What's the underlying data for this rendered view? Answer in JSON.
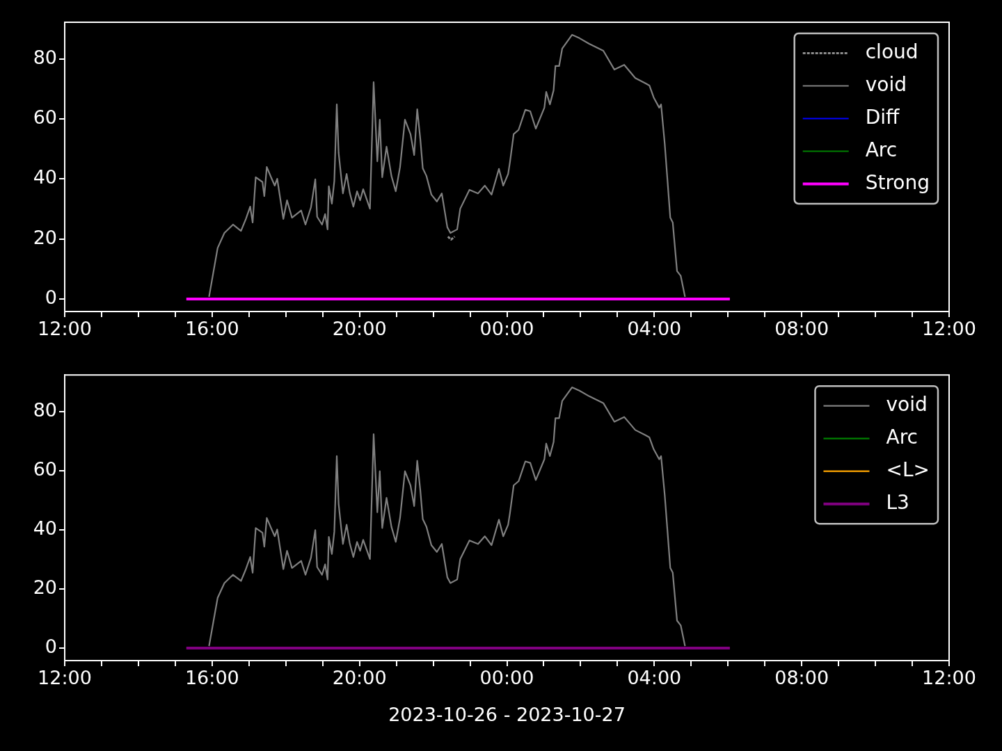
{
  "chart_data": [
    {
      "type": "line",
      "legend": "top right",
      "marker": "none",
      "xlim": [
        "2023-10-26T12:00",
        "2023-10-27T12:00"
      ],
      "xticks": [
        {
          "value": "2023-10-26T12:00",
          "label": "12:00"
        },
        {
          "value": "2023-10-26T13:00",
          "label": null
        },
        {
          "value": "2023-10-26T14:00",
          "label": null
        },
        {
          "value": "2023-10-26T15:00",
          "label": null
        },
        {
          "value": "2023-10-26T16:00",
          "label": "16:00"
        },
        {
          "value": "2023-10-26T17:00",
          "label": null
        },
        {
          "value": "2023-10-26T18:00",
          "label": null
        },
        {
          "value": "2023-10-26T19:00",
          "label": null
        },
        {
          "value": "2023-10-26T20:00",
          "label": "20:00"
        },
        {
          "value": "2023-10-26T21:00",
          "label": null
        },
        {
          "value": "2023-10-26T22:00",
          "label": null
        },
        {
          "value": "2023-10-26T23:00",
          "label": null
        },
        {
          "value": "2023-10-27T00:00",
          "label": "00:00"
        },
        {
          "value": "2023-10-27T01:00",
          "label": null
        },
        {
          "value": "2023-10-27T02:00",
          "label": null
        },
        {
          "value": "2023-10-27T03:00",
          "label": null
        },
        {
          "value": "2023-10-27T04:00",
          "label": "04:00"
        },
        {
          "value": "2023-10-27T05:00",
          "label": null
        },
        {
          "value": "2023-10-27T06:00",
          "label": null
        },
        {
          "value": "2023-10-27T07:00",
          "label": null
        },
        {
          "value": "2023-10-27T08:00",
          "label": "08:00"
        },
        {
          "value": "2023-10-27T09:00",
          "label": null
        },
        {
          "value": "2023-10-27T10:00",
          "label": null
        },
        {
          "value": "2023-10-27T11:00",
          "label": null
        },
        {
          "value": "2023-10-27T12:00",
          "label": "12:00"
        }
      ],
      "ylim": [
        -4.2,
        92.3
      ],
      "yticks": [
        0,
        20,
        40,
        60,
        80
      ],
      "series": [
        {
          "name": "cloud",
          "color": "#8c8c8c",
          "line_style": "dashed",
          "x": [
            "2023-10-26T22:24",
            "2023-10-26T22:27",
            "2023-10-26T22:29",
            "2023-10-26T22:32",
            "2023-10-26T22:35"
          ],
          "values": [
            20.8,
            20.2,
            19.8,
            20.3,
            20.8
          ]
        },
        {
          "name": "void",
          "color": "#808080",
          "x": [
            "2023-10-26T15:55",
            "2023-10-26T16:09",
            "2023-10-26T16:20",
            "2023-10-26T16:34",
            "2023-10-26T16:47",
            "2023-10-26T16:55",
            "2023-10-26T17:02",
            "2023-10-26T17:06",
            "2023-10-26T17:11",
            "2023-10-26T17:22",
            "2023-10-26T17:25",
            "2023-10-26T17:29",
            "2023-10-26T17:37",
            "2023-10-26T17:42",
            "2023-10-26T17:46",
            "2023-10-26T17:56",
            "2023-10-26T18:02",
            "2023-10-26T18:10",
            "2023-10-26T18:25",
            "2023-10-26T18:32",
            "2023-10-26T18:41",
            "2023-10-26T18:48",
            "2023-10-26T18:51",
            "2023-10-26T18:59",
            "2023-10-26T19:04",
            "2023-10-26T19:08",
            "2023-10-26T19:10",
            "2023-10-26T19:15",
            "2023-10-26T19:19",
            "2023-10-26T19:23",
            "2023-10-26T19:26",
            "2023-10-26T19:33",
            "2023-10-26T19:39",
            "2023-10-26T19:44",
            "2023-10-26T19:50",
            "2023-10-26T19:56",
            "2023-10-26T20:01",
            "2023-10-26T20:06",
            "2023-10-26T20:17",
            "2023-10-26T20:23",
            "2023-10-26T20:29",
            "2023-10-26T20:33",
            "2023-10-26T20:37",
            "2023-10-26T20:44",
            "2023-10-26T20:52",
            "2023-10-26T20:59",
            "2023-10-26T21:06",
            "2023-10-26T21:14",
            "2023-10-26T21:23",
            "2023-10-26T21:29",
            "2023-10-26T21:34",
            "2023-10-26T21:39",
            "2023-10-26T21:43",
            "2023-10-26T21:49",
            "2023-10-26T21:57",
            "2023-10-26T22:06",
            "2023-10-26T22:14",
            "2023-10-26T22:23",
            "2023-10-26T22:28",
            "2023-10-26T22:39",
            "2023-10-26T22:44",
            "2023-10-26T22:59",
            "2023-10-26T23:13",
            "2023-10-26T23:24",
            "2023-10-26T23:35",
            "2023-10-26T23:47",
            "2023-10-26T23:54",
            "2023-10-27T00:02",
            "2023-10-27T00:05",
            "2023-10-27T00:11",
            "2023-10-27T00:19",
            "2023-10-27T00:30",
            "2023-10-27T00:38",
            "2023-10-27T00:47",
            "2023-10-27T01:01",
            "2023-10-27T01:04",
            "2023-10-27T01:10",
            "2023-10-27T01:16",
            "2023-10-27T01:19",
            "2023-10-27T01:25",
            "2023-10-27T01:30",
            "2023-10-27T01:46",
            "2023-10-27T01:58",
            "2023-10-27T02:14",
            "2023-10-27T02:37",
            "2023-10-27T02:55",
            "2023-10-27T03:11",
            "2023-10-27T03:29",
            "2023-10-27T03:46",
            "2023-10-27T03:52",
            "2023-10-27T03:59",
            "2023-10-27T04:08",
            "2023-10-27T04:11",
            "2023-10-27T04:17",
            "2023-10-27T04:26",
            "2023-10-27T04:30",
            "2023-10-27T04:37",
            "2023-10-27T04:43",
            "2023-10-27T04:50"
          ],
          "values": [
            0.7,
            17,
            22,
            24.8,
            22.7,
            26.7,
            30.8,
            25.5,
            40.6,
            39,
            34.3,
            44,
            40.1,
            37.8,
            40.1,
            26.7,
            32.9,
            27.1,
            29.5,
            24.8,
            30.6,
            39.9,
            27.4,
            24.8,
            28.3,
            23.2,
            37.6,
            31.8,
            39.4,
            64.9,
            48.7,
            35.2,
            41.7,
            35.5,
            30.8,
            35.9,
            32.9,
            36.6,
            30.1,
            72.3,
            45.9,
            59.8,
            40.6,
            50.8,
            41,
            35.9,
            44,
            59.8,
            55,
            48,
            63.3,
            53.3,
            43.6,
            41,
            34.8,
            32.5,
            35.2,
            23.9,
            22,
            23.2,
            30.1,
            36.4,
            35.2,
            37.8,
            34.8,
            43.4,
            37.8,
            41.7,
            45.7,
            55,
            56.4,
            63.1,
            62.6,
            56.8,
            63.8,
            69.1,
            64.9,
            69.6,
            77.7,
            77.7,
            83.5,
            88.1,
            87,
            85.1,
            82.8,
            76.5,
            78.1,
            73.7,
            71.9,
            71.2,
            67.2,
            63.8,
            64.9,
            51.7,
            27.1,
            25.5,
            9.3,
            7.7,
            0.7
          ]
        },
        {
          "name": "Diff",
          "color": "#0000ff"
        },
        {
          "name": "Arc",
          "color": "#008000"
        },
        {
          "name": "Strong",
          "color": "#ff00ff",
          "x": [
            "2023-10-26T15:18",
            "2023-10-27T06:03"
          ],
          "values": [
            0,
            0
          ]
        }
      ]
    },
    {
      "type": "line",
      "legend": "top right",
      "marker": "none",
      "xlabel": "2023-10-26 - 2023-10-27",
      "xlim": [
        "2023-10-26T12:00",
        "2023-10-27T12:00"
      ],
      "xticks": [
        {
          "value": "2023-10-26T12:00",
          "label": "12:00"
        },
        {
          "value": "2023-10-26T13:00",
          "label": null
        },
        {
          "value": "2023-10-26T14:00",
          "label": null
        },
        {
          "value": "2023-10-26T15:00",
          "label": null
        },
        {
          "value": "2023-10-26T16:00",
          "label": "16:00"
        },
        {
          "value": "2023-10-26T17:00",
          "label": null
        },
        {
          "value": "2023-10-26T18:00",
          "label": null
        },
        {
          "value": "2023-10-26T19:00",
          "label": null
        },
        {
          "value": "2023-10-26T20:00",
          "label": "20:00"
        },
        {
          "value": "2023-10-26T21:00",
          "label": null
        },
        {
          "value": "2023-10-26T22:00",
          "label": null
        },
        {
          "value": "2023-10-26T23:00",
          "label": null
        },
        {
          "value": "2023-10-27T00:00",
          "label": "00:00"
        },
        {
          "value": "2023-10-27T01:00",
          "label": null
        },
        {
          "value": "2023-10-27T02:00",
          "label": null
        },
        {
          "value": "2023-10-27T03:00",
          "label": null
        },
        {
          "value": "2023-10-27T04:00",
          "label": "04:00"
        },
        {
          "value": "2023-10-27T05:00",
          "label": null
        },
        {
          "value": "2023-10-27T06:00",
          "label": null
        },
        {
          "value": "2023-10-27T07:00",
          "label": null
        },
        {
          "value": "2023-10-27T08:00",
          "label": "08:00"
        },
        {
          "value": "2023-10-27T09:00",
          "label": null
        },
        {
          "value": "2023-10-27T10:00",
          "label": null
        },
        {
          "value": "2023-10-27T11:00",
          "label": null
        },
        {
          "value": "2023-10-27T12:00",
          "label": "12:00"
        }
      ],
      "ylim": [
        -4.2,
        92.3
      ],
      "yticks": [
        0,
        20,
        40,
        60,
        80
      ],
      "series": [
        {
          "name": "void",
          "color": "#808080",
          "x": [
            "2023-10-26T15:55",
            "2023-10-26T16:09",
            "2023-10-26T16:20",
            "2023-10-26T16:34",
            "2023-10-26T16:47",
            "2023-10-26T16:55",
            "2023-10-26T17:02",
            "2023-10-26T17:06",
            "2023-10-26T17:11",
            "2023-10-26T17:22",
            "2023-10-26T17:25",
            "2023-10-26T17:29",
            "2023-10-26T17:37",
            "2023-10-26T17:42",
            "2023-10-26T17:46",
            "2023-10-26T17:56",
            "2023-10-26T18:02",
            "2023-10-26T18:10",
            "2023-10-26T18:25",
            "2023-10-26T18:32",
            "2023-10-26T18:41",
            "2023-10-26T18:48",
            "2023-10-26T18:51",
            "2023-10-26T18:59",
            "2023-10-26T19:04",
            "2023-10-26T19:08",
            "2023-10-26T19:10",
            "2023-10-26T19:15",
            "2023-10-26T19:19",
            "2023-10-26T19:23",
            "2023-10-26T19:26",
            "2023-10-26T19:33",
            "2023-10-26T19:39",
            "2023-10-26T19:44",
            "2023-10-26T19:50",
            "2023-10-26T19:56",
            "2023-10-26T20:01",
            "2023-10-26T20:06",
            "2023-10-26T20:17",
            "2023-10-26T20:23",
            "2023-10-26T20:29",
            "2023-10-26T20:33",
            "2023-10-26T20:37",
            "2023-10-26T20:44",
            "2023-10-26T20:52",
            "2023-10-26T20:59",
            "2023-10-26T21:06",
            "2023-10-26T21:14",
            "2023-10-26T21:23",
            "2023-10-26T21:29",
            "2023-10-26T21:34",
            "2023-10-26T21:39",
            "2023-10-26T21:43",
            "2023-10-26T21:49",
            "2023-10-26T21:57",
            "2023-10-26T22:06",
            "2023-10-26T22:14",
            "2023-10-26T22:23",
            "2023-10-26T22:28",
            "2023-10-26T22:39",
            "2023-10-26T22:44",
            "2023-10-26T22:59",
            "2023-10-26T23:13",
            "2023-10-26T23:24",
            "2023-10-26T23:35",
            "2023-10-26T23:47",
            "2023-10-26T23:54",
            "2023-10-27T00:02",
            "2023-10-27T00:05",
            "2023-10-27T00:11",
            "2023-10-27T00:19",
            "2023-10-27T00:30",
            "2023-10-27T00:38",
            "2023-10-27T00:47",
            "2023-10-27T01:01",
            "2023-10-27T01:04",
            "2023-10-27T01:10",
            "2023-10-27T01:16",
            "2023-10-27T01:19",
            "2023-10-27T01:25",
            "2023-10-27T01:30",
            "2023-10-27T01:46",
            "2023-10-27T01:58",
            "2023-10-27T02:14",
            "2023-10-27T02:37",
            "2023-10-27T02:55",
            "2023-10-27T03:11",
            "2023-10-27T03:29",
            "2023-10-27T03:46",
            "2023-10-27T03:52",
            "2023-10-27T03:59",
            "2023-10-27T04:08",
            "2023-10-27T04:11",
            "2023-10-27T04:17",
            "2023-10-27T04:26",
            "2023-10-27T04:30",
            "2023-10-27T04:37",
            "2023-10-27T04:43",
            "2023-10-27T04:50"
          ],
          "values": [
            0.7,
            17,
            22,
            24.8,
            22.7,
            26.7,
            30.8,
            25.5,
            40.6,
            39,
            34.3,
            44,
            40.1,
            37.8,
            40.1,
            26.7,
            32.9,
            27.1,
            29.5,
            24.8,
            30.6,
            39.9,
            27.4,
            24.8,
            28.3,
            23.2,
            37.6,
            31.8,
            39.4,
            64.9,
            48.7,
            35.2,
            41.7,
            35.5,
            30.8,
            35.9,
            32.9,
            36.6,
            30.1,
            72.3,
            45.9,
            59.8,
            40.6,
            50.8,
            41,
            35.9,
            44,
            59.8,
            55,
            48,
            63.3,
            53.3,
            43.6,
            41,
            34.8,
            32.5,
            35.2,
            23.9,
            22,
            23.2,
            30.1,
            36.4,
            35.2,
            37.8,
            34.8,
            43.4,
            37.8,
            41.7,
            45.7,
            55,
            56.4,
            63.1,
            62.6,
            56.8,
            63.8,
            69.1,
            64.9,
            69.6,
            77.7,
            77.7,
            83.5,
            88.1,
            87,
            85.1,
            82.8,
            76.5,
            78.1,
            73.7,
            71.9,
            71.2,
            67.2,
            63.8,
            64.9,
            51.7,
            27.1,
            25.5,
            9.3,
            7.7,
            0.7
          ]
        },
        {
          "name": "Arc",
          "color": "#008000"
        },
        {
          "name": "<L>",
          "color": "#ffa500"
        },
        {
          "name": "L3",
          "color": "#800080",
          "x": [
            "2023-10-26T15:18",
            "2023-10-27T06:03"
          ],
          "values": [
            0,
            0
          ]
        }
      ]
    }
  ]
}
